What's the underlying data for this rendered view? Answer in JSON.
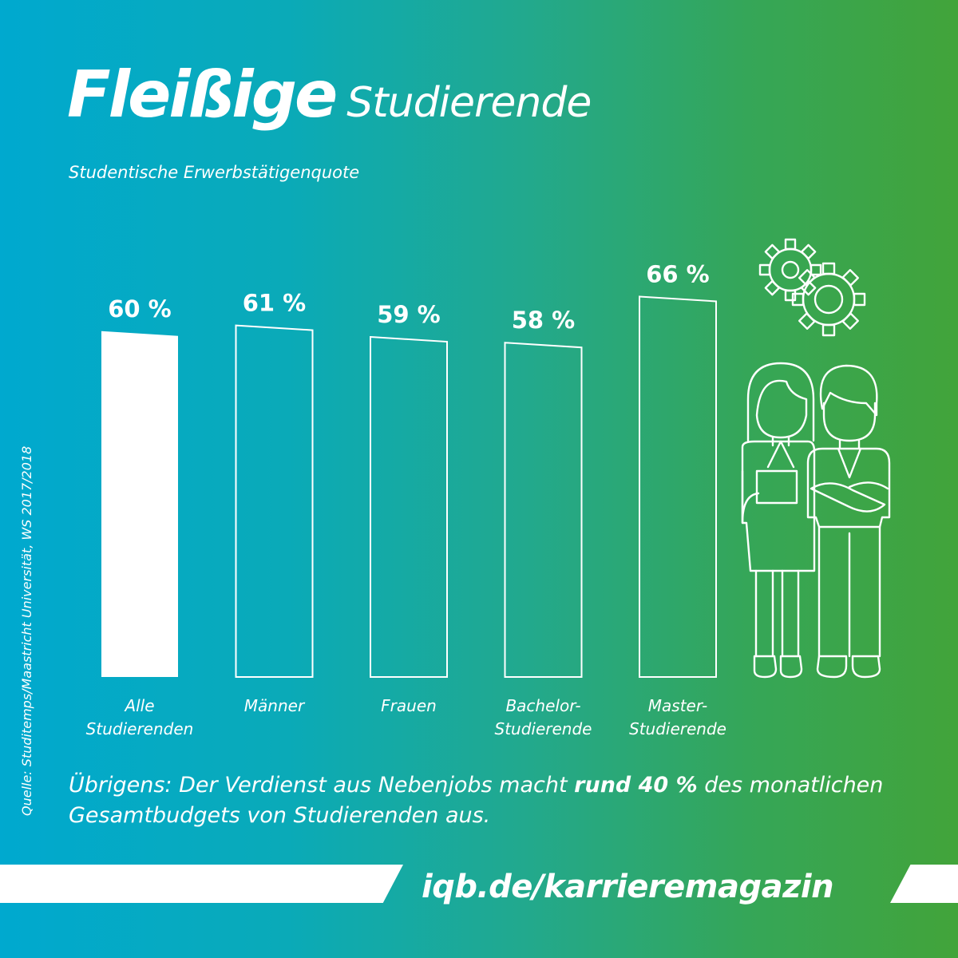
{
  "header": {
    "title_bold": "Fleißige",
    "title_light": "Studierende",
    "subtitle": "Studentische Erwerbstätigenquote"
  },
  "source": "Quelle: Studitemps/Maastricht Universität, WS 2017/2018",
  "chart_data": {
    "type": "bar",
    "title": "Studentische Erwerbstätigenquote",
    "categories": [
      [
        "Alle",
        "Studierenden"
      ],
      [
        "Männer"
      ],
      [
        "Frauen"
      ],
      [
        "Bachelor-",
        "Studierende"
      ],
      [
        "Master-",
        "Studierende"
      ]
    ],
    "values": [
      60,
      61,
      59,
      58,
      66
    ],
    "value_labels": [
      "60 %",
      "61 %",
      "59 %",
      "58 %",
      "66 %"
    ],
    "highlight_index": 0,
    "unit": "%",
    "grid": false,
    "legend": "none"
  },
  "illustration": {
    "icons": [
      "gears-icon",
      "female-student-icon",
      "male-student-icon"
    ]
  },
  "note": {
    "prefix": "Übrigens: Der Verdienst aus Nebenjobs macht ",
    "highlight": "rund 40 %",
    "suffix": " des monatlichen Gesamtbudgets von Studierenden aus."
  },
  "footer": {
    "url": "iqb.de/karrieremagazin"
  },
  "colors": {
    "gradient_start": "#00a9cf",
    "gradient_end": "#42a43a",
    "foreground": "#ffffff"
  }
}
